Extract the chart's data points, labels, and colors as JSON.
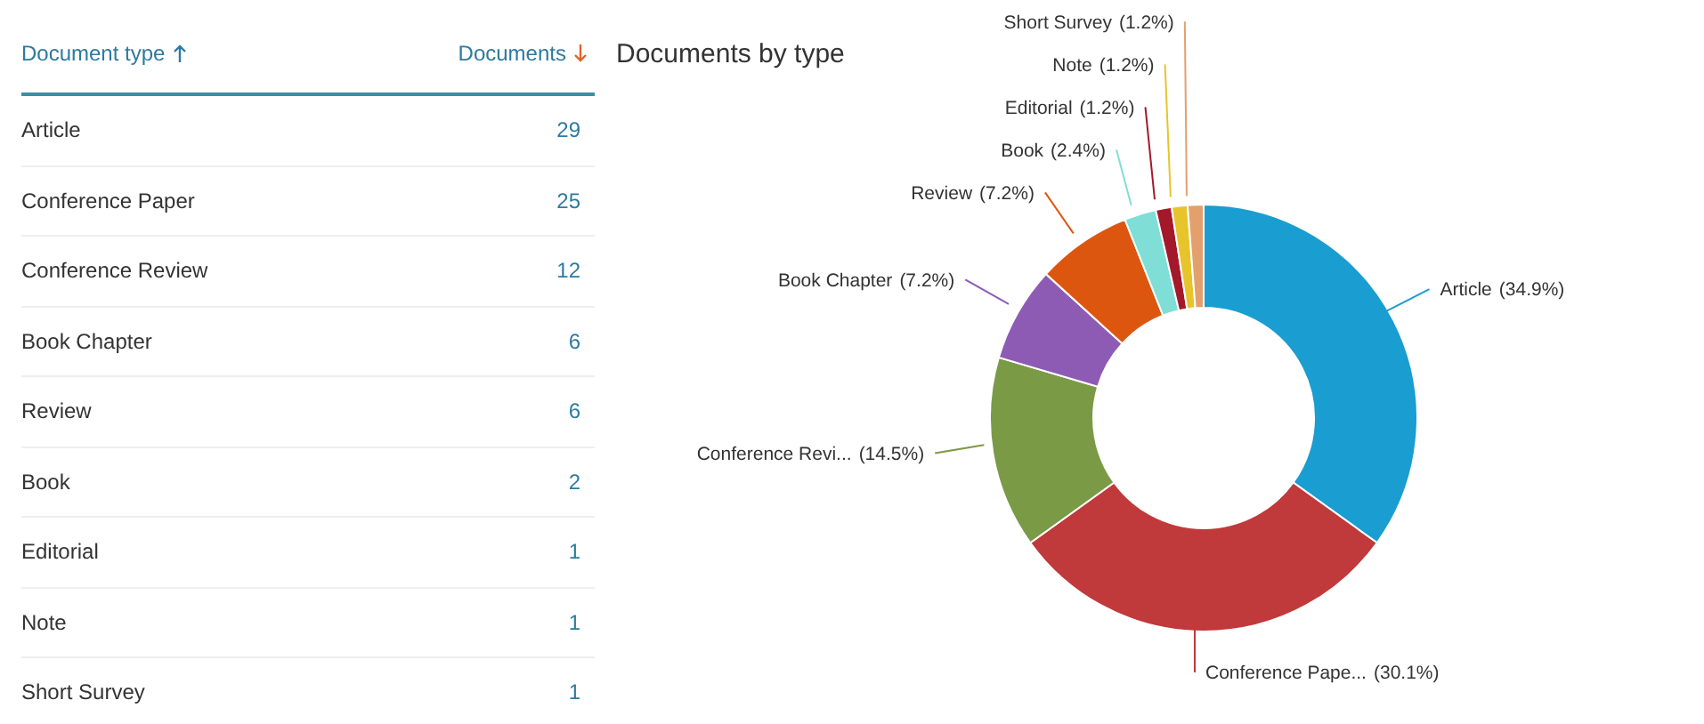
{
  "chart_data": [
    {
      "type": "other",
      "annotations": [
        "Document type",
        "Documents"
      ],
      "categories": [
        "Article",
        "Conference Paper",
        "Conference Review",
        "Book Chapter",
        "Review",
        "Book",
        "Editorial",
        "Note",
        "Short Survey"
      ],
      "values": [
        29,
        25,
        12,
        6,
        6,
        2,
        1,
        1,
        1
      ],
      "data_labels": true
    },
    {
      "type": "donut",
      "title": "Documents by type",
      "categories": [
        "Article",
        "Conference Pape...",
        "Conference Revi...",
        "Book Chapter",
        "Review",
        "Book",
        "Editorial",
        "Note",
        "Short Survey"
      ],
      "values": [
        34.9,
        30.1,
        14.5,
        7.2,
        7.2,
        2.4,
        1.2,
        1.2,
        1.2
      ],
      "colors": [
        "#1a9dd0",
        "#c0393b",
        "#7a9a46",
        "#8e5bb4",
        "#dd5610",
        "#7fded6",
        "#a3182a",
        "#e8c42c",
        "#e3a06c"
      ],
      "value_labels": [
        "(34.9%)",
        "(30.1%)",
        "(14.5%)",
        "(7.2%)",
        "(7.2%)",
        "(2.4%)",
        "(1.2%)",
        "(1.2%)",
        "(1.2%)"
      ]
    }
  ]
}
